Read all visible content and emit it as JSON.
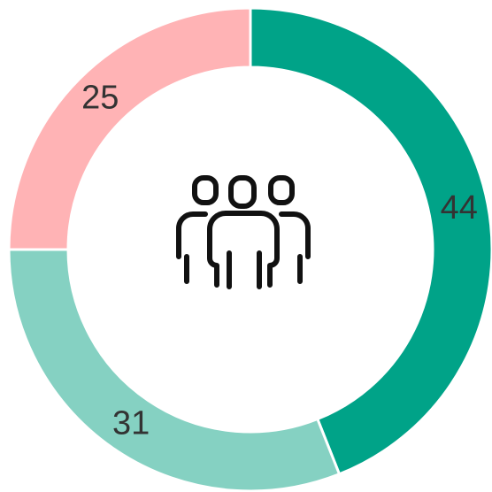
{
  "chart_data": {
    "type": "donut",
    "categories": [
      null,
      null,
      null
    ],
    "values": [
      44,
      31,
      25
    ],
    "colors": [
      "#00a388",
      "#85d1c2",
      "#ffb3b5"
    ]
  }
}
